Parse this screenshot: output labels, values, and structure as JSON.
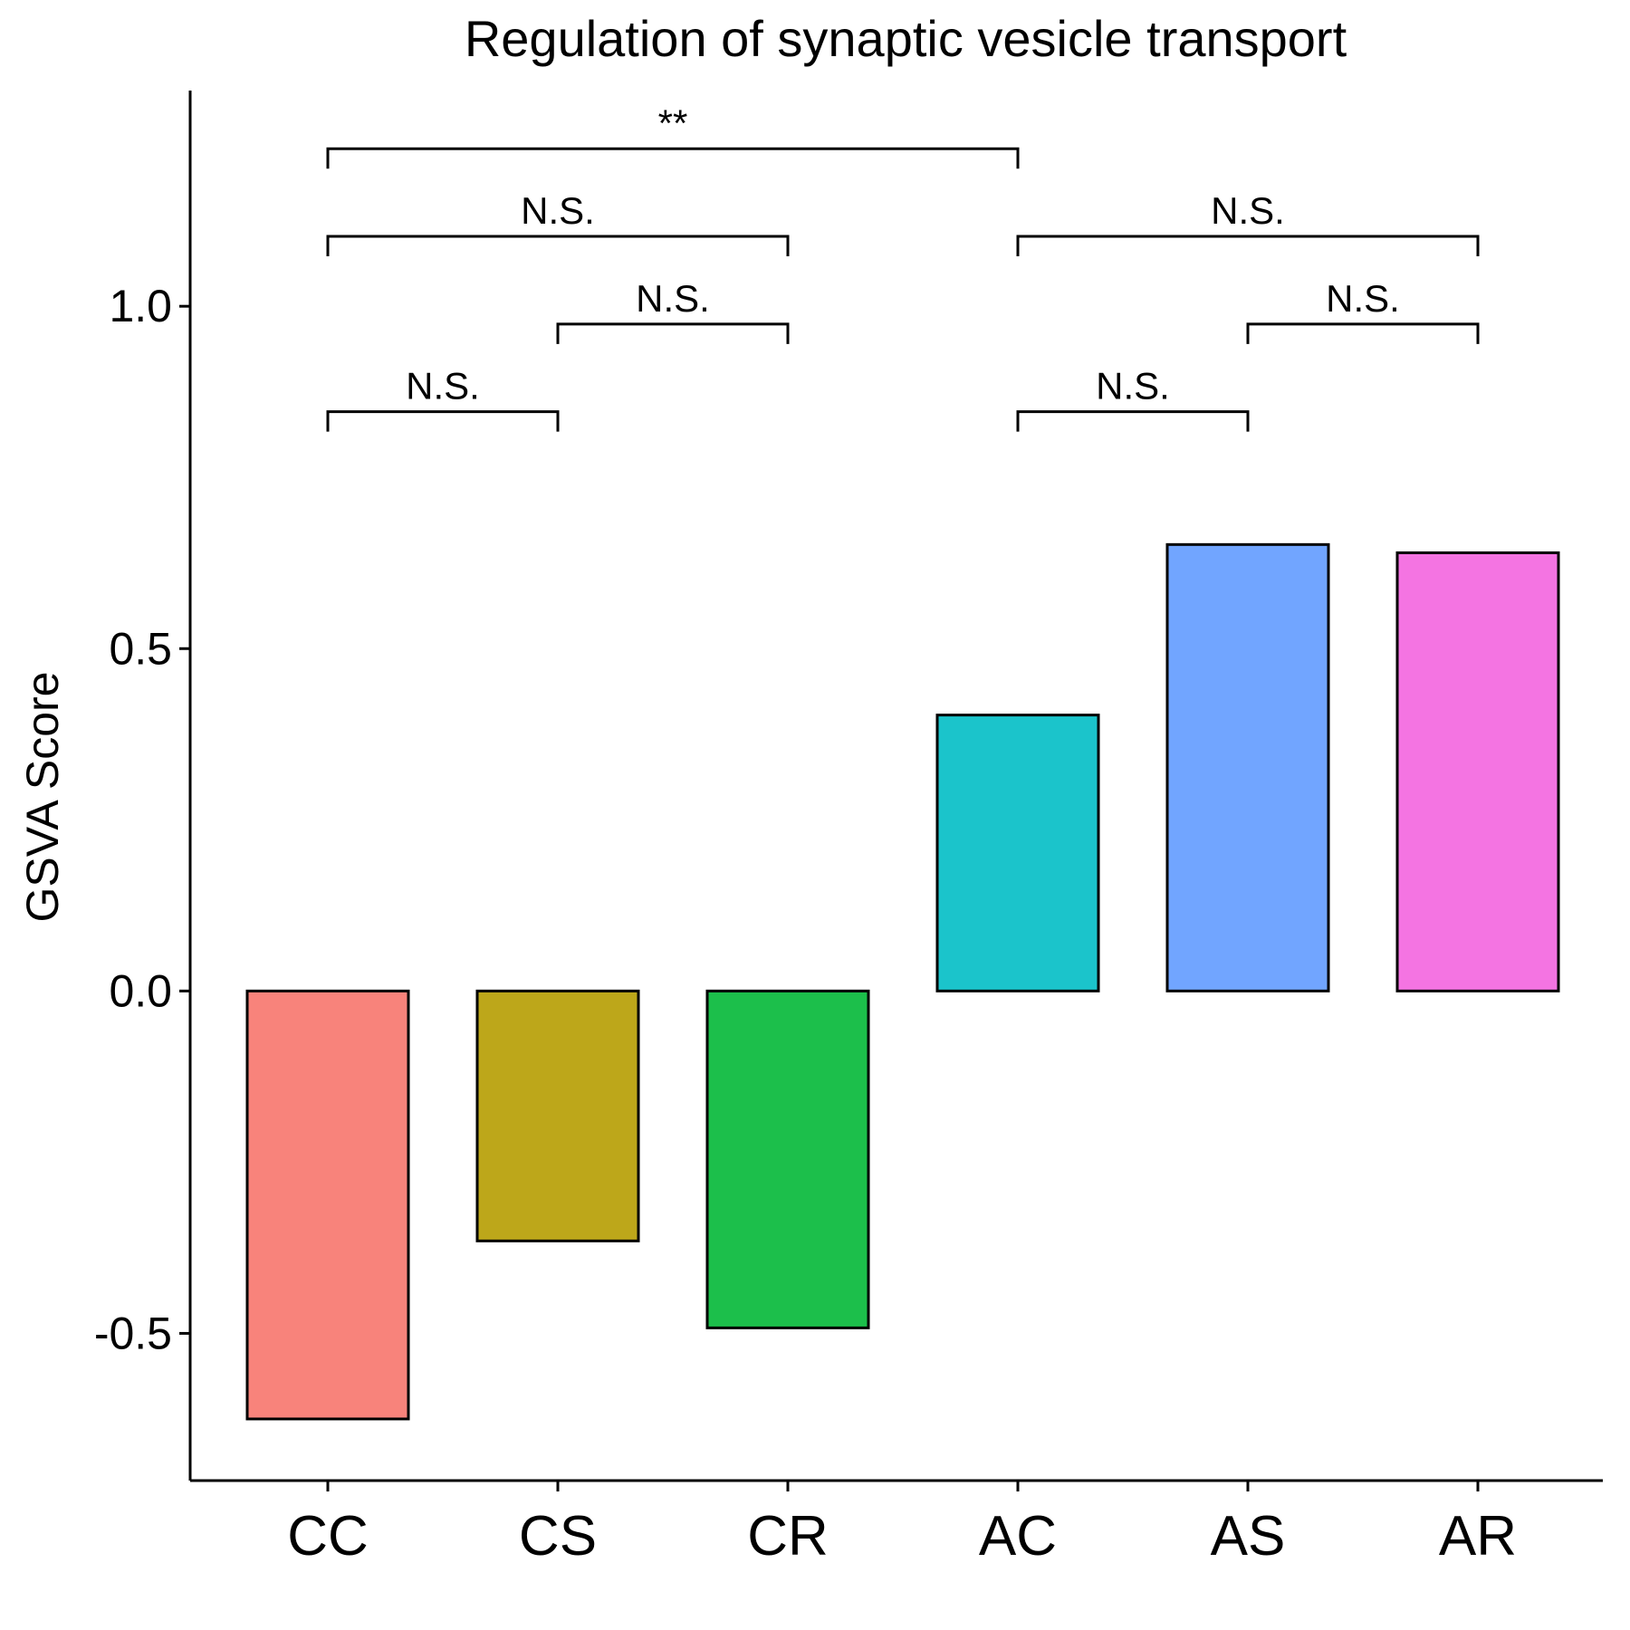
{
  "chart_data": {
    "type": "bar",
    "title": "Regulation of synaptic vesicle transport",
    "xlabel": "",
    "ylabel": "GSVA Score",
    "categories": [
      "CC",
      "CS",
      "CR",
      "AC",
      "AS",
      "AR"
    ],
    "values": [
      -0.625,
      -0.365,
      -0.492,
      0.403,
      0.652,
      0.64
    ],
    "colors": [
      "#F8837B",
      "#BDA71A",
      "#1CBF4B",
      "#1BC4CB",
      "#71A5FF",
      "#F474E2"
    ],
    "ylim": [
      -0.715,
      1.315
    ],
    "yticks": [
      -0.5,
      0.0,
      0.5,
      1.0
    ],
    "ytick_labels": [
      "-0.5",
      "0.0",
      "0.5",
      "1.0"
    ],
    "grid": false,
    "legend": "none",
    "comparisons": [
      {
        "from": "CC",
        "to": "AC",
        "label": "**",
        "y": 1.23
      },
      {
        "from": "CC",
        "to": "CR",
        "label": "N.S.",
        "y": 1.102
      },
      {
        "from": "AC",
        "to": "AR",
        "label": "N.S.",
        "y": 1.102
      },
      {
        "from": "CS",
        "to": "CR",
        "label": "N.S.",
        "y": 0.974
      },
      {
        "from": "AS",
        "to": "AR",
        "label": "N.S.",
        "y": 0.974
      },
      {
        "from": "CC",
        "to": "CS",
        "label": "N.S.",
        "y": 0.846
      },
      {
        "from": "AC",
        "to": "AS",
        "label": "N.S.",
        "y": 0.846
      }
    ]
  }
}
